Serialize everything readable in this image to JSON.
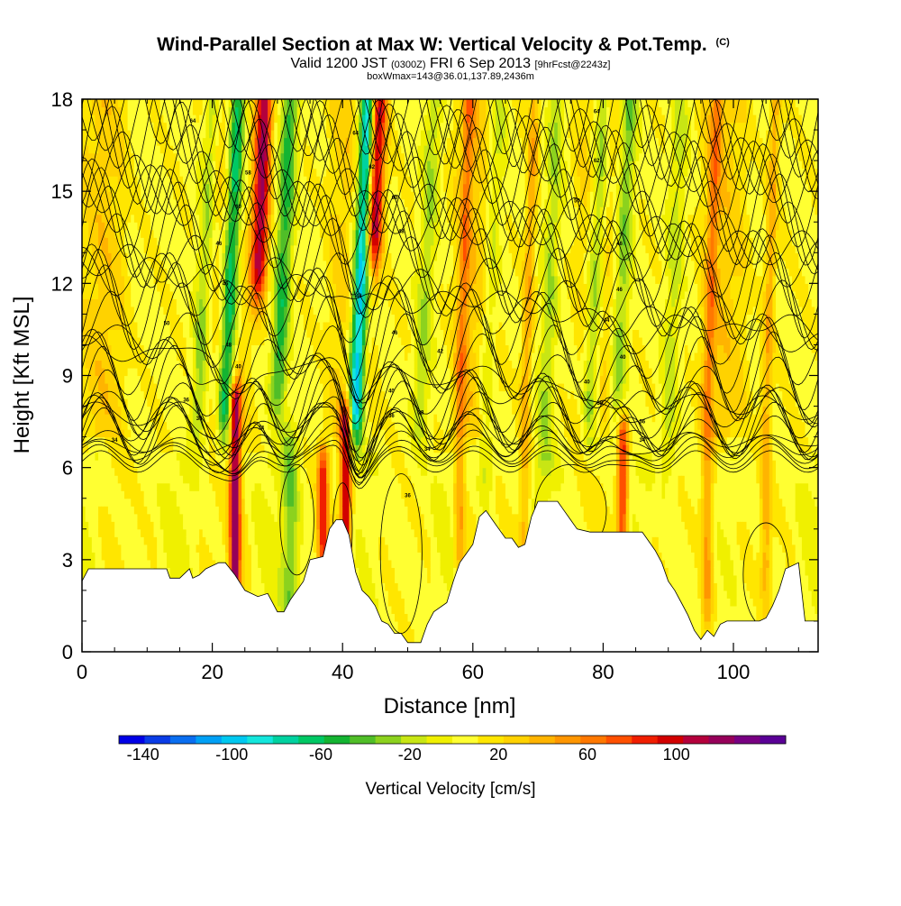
{
  "header": {
    "title_main": "Wind-Parallel Section at Max W: Vertical Velocity & Pot.Temp.",
    "title_mark": "(C)",
    "sub_a": "Valid 1200 JST",
    "sub_b": "(0300Z)",
    "sub_c": "FRI 6 Sep 2013",
    "sub_d": "[9hrFcst@2243z]",
    "line3": "boxWmax=143@36.01,137.89,2436m"
  },
  "chart_data": {
    "type": "heatmap",
    "xlabel": "Distance [nm]",
    "ylabel": "Height [Kft MSL]",
    "xlim": [
      0,
      113
    ],
    "ylim": [
      0,
      18
    ],
    "x_ticks": [
      "0",
      "20",
      "40",
      "60",
      "80",
      "100"
    ],
    "x_tick_values": [
      0,
      20,
      40,
      60,
      80,
      100
    ],
    "y_ticks": [
      "0",
      "3",
      "6",
      "9",
      "12",
      "15",
      "18"
    ],
    "y_tick_values": [
      0,
      3,
      6,
      9,
      12,
      15,
      18
    ],
    "colorbar": {
      "label": "Vertical Velocity [cm/s]",
      "ticks": [
        "-140",
        "-100",
        "-60",
        "-20",
        "20",
        "60",
        "100"
      ],
      "tick_values": [
        -140,
        -100,
        -60,
        -20,
        20,
        60,
        100
      ],
      "range": [
        -150,
        150
      ],
      "colors": [
        "#0000e6",
        "#0a3ce6",
        "#0a6ef0",
        "#00a0f5",
        "#00c8f0",
        "#14e6dc",
        "#00d2a0",
        "#00c864",
        "#14b432",
        "#50be28",
        "#8cd21e",
        "#c8e614",
        "#f0f000",
        "#ffff32",
        "#ffe600",
        "#ffd200",
        "#ffb400",
        "#ff9600",
        "#ff7800",
        "#ff5000",
        "#f01e00",
        "#d20000",
        "#b4003c",
        "#96005a",
        "#780082",
        "#5a0096"
      ]
    },
    "updrafts": [
      {
        "x": 23.5,
        "ztop": 8,
        "v": 115
      },
      {
        "x": 26.5,
        "zbase": 13,
        "v": 110
      },
      {
        "x": 37,
        "ztop": 6,
        "v": 80
      },
      {
        "x": 40.5,
        "ztop": 7.5,
        "v": 100
      },
      {
        "x": 44,
        "zbase": 14,
        "v": 110
      },
      {
        "x": 83,
        "ztop": 7,
        "v": 80
      },
      {
        "x": 58,
        "zbase": 3,
        "v": 40
      },
      {
        "x": 68,
        "zbase": 3,
        "v": 35
      },
      {
        "x": 96,
        "zbase": 2,
        "v": 40
      },
      {
        "x": 105,
        "zbase": 3,
        "v": 35
      }
    ],
    "downdrafts": [
      {
        "x": 18,
        "zbase": 8,
        "v": -40
      },
      {
        "x": 22,
        "zbase": 8,
        "v": -90
      },
      {
        "x": 30,
        "zbase": 9,
        "v": -60
      },
      {
        "x": 42,
        "zbase": 8,
        "v": -125
      },
      {
        "x": 32,
        "ztop": 6.5,
        "v": -40
      },
      {
        "x": 52,
        "zbase": 8,
        "v": -30
      },
      {
        "x": 62,
        "zbase": 6,
        "v": -30
      },
      {
        "x": 71,
        "zbase": 7,
        "v": -30
      },
      {
        "x": 78,
        "zbase": 8,
        "v": -50
      },
      {
        "x": 82,
        "zbase": 8,
        "v": -45
      },
      {
        "x": 90,
        "zbase": 7,
        "v": -25
      }
    ],
    "terrain": [
      [
        0,
        2.3
      ],
      [
        1,
        2.7
      ],
      [
        13,
        2.7
      ],
      [
        13.5,
        2.4
      ],
      [
        15,
        2.4
      ],
      [
        16.5,
        2.7
      ],
      [
        17,
        2.4
      ],
      [
        18,
        2.5
      ],
      [
        19,
        2.7
      ],
      [
        21,
        2.9
      ],
      [
        22,
        2.9
      ],
      [
        23.5,
        2.5
      ],
      [
        25,
        2.0
      ],
      [
        27,
        1.8
      ],
      [
        28.5,
        1.9
      ],
      [
        30,
        1.3
      ],
      [
        31,
        1.3
      ],
      [
        32,
        1.7
      ],
      [
        34,
        2.3
      ],
      [
        35,
        3.0
      ],
      [
        37,
        3.1
      ],
      [
        38,
        4.0
      ],
      [
        39,
        4.3
      ],
      [
        40,
        4.3
      ],
      [
        41,
        3.8
      ],
      [
        42,
        2.6
      ],
      [
        43,
        2.0
      ],
      [
        44,
        1.8
      ],
      [
        45,
        1.5
      ],
      [
        46,
        1.0
      ],
      [
        47,
        0.9
      ],
      [
        48,
        0.6
      ],
      [
        49,
        0.6
      ],
      [
        50,
        0.3
      ],
      [
        52,
        0.3
      ],
      [
        53,
        0.9
      ],
      [
        54,
        1.3
      ],
      [
        56,
        1.6
      ],
      [
        57,
        2.3
      ],
      [
        58,
        2.9
      ],
      [
        59,
        3.2
      ],
      [
        60,
        3.5
      ],
      [
        61,
        4.4
      ],
      [
        62,
        4.6
      ],
      [
        63,
        4.3
      ],
      [
        64,
        4.0
      ],
      [
        65,
        3.7
      ],
      [
        66,
        3.7
      ],
      [
        67,
        3.4
      ],
      [
        68,
        3.5
      ],
      [
        69,
        4.4
      ],
      [
        70,
        4.9
      ],
      [
        73,
        4.9
      ],
      [
        74,
        4.6
      ],
      [
        75,
        4.3
      ],
      [
        76,
        4.0
      ],
      [
        78,
        3.9
      ],
      [
        86,
        3.9
      ],
      [
        88,
        3.3
      ],
      [
        89,
        2.9
      ],
      [
        90,
        2.3
      ],
      [
        91,
        2.0
      ],
      [
        92,
        1.6
      ],
      [
        93,
        1.2
      ],
      [
        94,
        0.7
      ],
      [
        95,
        0.4
      ],
      [
        96,
        0.7
      ],
      [
        97,
        0.5
      ],
      [
        98,
        0.9
      ],
      [
        99,
        1.0
      ],
      [
        104,
        1.0
      ],
      [
        105,
        1.1
      ],
      [
        106,
        1.5
      ],
      [
        107,
        2.0
      ],
      [
        108,
        2.7
      ],
      [
        110,
        2.9
      ],
      [
        111,
        1.0
      ],
      [
        113,
        1.0
      ]
    ],
    "isentrope_labels": [
      {
        "text": "64",
        "x": 17,
        "z": 17.3
      },
      {
        "text": "58",
        "x": 25.5,
        "z": 15.6
      },
      {
        "text": "60",
        "x": 24,
        "z": 14.5
      },
      {
        "text": "46",
        "x": 21,
        "z": 13.3
      },
      {
        "text": "46",
        "x": 22,
        "z": 12.0
      },
      {
        "text": "50",
        "x": 13,
        "z": 10.7
      },
      {
        "text": "48",
        "x": 22.5,
        "z": 10.0
      },
      {
        "text": "40",
        "x": 24,
        "z": 9.3
      },
      {
        "text": "36",
        "x": 16,
        "z": 8.2
      },
      {
        "text": "38",
        "x": 18,
        "z": 7.6
      },
      {
        "text": "34",
        "x": 27.5,
        "z": 7.3
      },
      {
        "text": "34",
        "x": 5,
        "z": 6.9
      },
      {
        "text": "64",
        "x": 42,
        "z": 16.9
      },
      {
        "text": "62",
        "x": 44.5,
        "z": 15.8
      },
      {
        "text": "60",
        "x": 48,
        "z": 14.8
      },
      {
        "text": "48",
        "x": 49,
        "z": 13.7
      },
      {
        "text": "48",
        "x": 42.5,
        "z": 11.6
      },
      {
        "text": "46",
        "x": 48,
        "z": 10.4
      },
      {
        "text": "42",
        "x": 55,
        "z": 9.8
      },
      {
        "text": "40",
        "x": 47.5,
        "z": 8.5
      },
      {
        "text": "36",
        "x": 47.5,
        "z": 7.7
      },
      {
        "text": "38",
        "x": 52,
        "z": 7.8
      },
      {
        "text": "34",
        "x": 53,
        "z": 6.6
      },
      {
        "text": "36",
        "x": 50,
        "z": 5.1
      },
      {
        "text": "64",
        "x": 79,
        "z": 17.6
      },
      {
        "text": "62",
        "x": 79,
        "z": 16.0
      },
      {
        "text": "50",
        "x": 76,
        "z": 14.7
      },
      {
        "text": "46",
        "x": 82.5,
        "z": 13.3
      },
      {
        "text": "46",
        "x": 82.5,
        "z": 11.8
      },
      {
        "text": "44",
        "x": 80.5,
        "z": 10.8
      },
      {
        "text": "40",
        "x": 83,
        "z": 9.6
      },
      {
        "text": "40",
        "x": 77.5,
        "z": 8.8
      },
      {
        "text": "38",
        "x": 79.5,
        "z": 8.1
      },
      {
        "text": "36",
        "x": 86,
        "z": 7.5
      },
      {
        "text": "34",
        "x": 86,
        "z": 6.9
      }
    ]
  }
}
